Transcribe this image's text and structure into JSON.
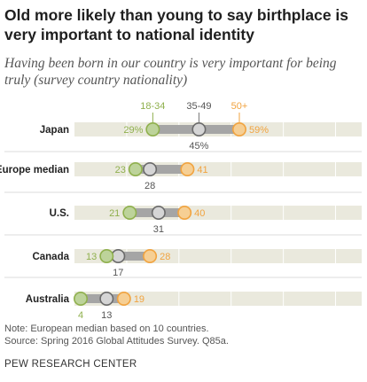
{
  "title": "Old more likely than young to say birthplace is very important to national identity",
  "subtitle": "Having been born in our country is very important for being truly (survey country nationality)",
  "chart_data": {
    "type": "dot-range",
    "x_range": [
      0,
      100
    ],
    "series": [
      {
        "name": "18-34",
        "color": "#8fb04d",
        "fill": "#bdd39a"
      },
      {
        "name": "35-49",
        "color": "#6a6a6a",
        "fill": "#d5d5d5"
      },
      {
        "name": "50+",
        "color": "#f1a33f",
        "fill": "#f6cf94"
      }
    ],
    "rows": [
      {
        "label": "Japan",
        "values": [
          29,
          45,
          59
        ],
        "labels": [
          "29%",
          "45%",
          "59%"
        ]
      },
      {
        "label": "Europe median",
        "values": [
          23,
          28,
          41
        ],
        "labels": [
          "23",
          "28",
          "41"
        ]
      },
      {
        "label": "U.S.",
        "values": [
          21,
          31,
          40
        ],
        "labels": [
          "21",
          "31",
          "40"
        ]
      },
      {
        "label": "Canada",
        "values": [
          13,
          17,
          28
        ],
        "labels": [
          "13",
          "17",
          "28"
        ]
      },
      {
        "label": "Australia",
        "values": [
          4,
          13,
          19
        ],
        "labels": [
          "4",
          "13",
          "19"
        ]
      }
    ]
  },
  "notes": {
    "note": "Note: European median based on 10 countries.",
    "source": "Source: Spring 2016 Global Attitudes Survey. Q85a."
  },
  "footer": "PEW RESEARCH CENTER"
}
